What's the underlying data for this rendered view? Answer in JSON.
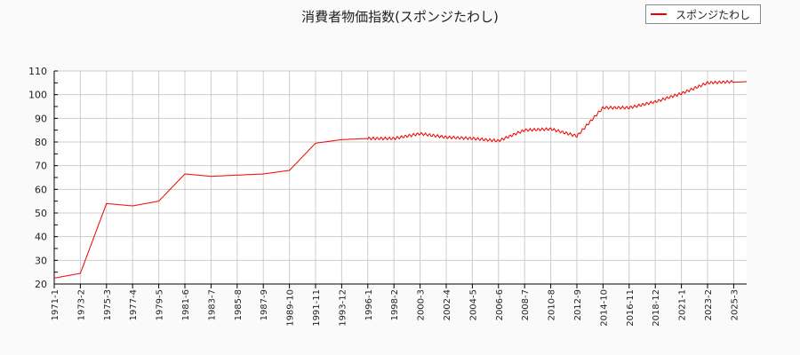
{
  "chart_data": {
    "type": "line",
    "title": "消費者物価指数(スポンジたわし)",
    "xlabel": "",
    "ylabel": "",
    "ylim": [
      20,
      110
    ],
    "yticks": [
      20,
      30,
      40,
      50,
      60,
      70,
      80,
      90,
      100,
      110
    ],
    "grid": true,
    "legend_position": "top-right",
    "categories": [
      "1971-1",
      "1973-2",
      "1975-3",
      "1977-4",
      "1979-5",
      "1981-6",
      "1983-7",
      "1985-8",
      "1987-9",
      "1989-10",
      "1991-11",
      "1993-12",
      "1996-1",
      "1998-2",
      "2000-3",
      "2002-4",
      "2004-5",
      "2006-6",
      "2008-7",
      "2010-8",
      "2012-9",
      "2014-10",
      "2016-11",
      "2018-12",
      "2021-1",
      "2023-2",
      "2025-3"
    ],
    "series": [
      {
        "name": "スポンジたわし",
        "color": "#ee0000",
        "values": [
          22.5,
          24.5,
          54.0,
          53.0,
          55.0,
          66.5,
          65.5,
          66.0,
          66.5,
          68.0,
          79.5,
          81.0,
          81.5,
          81.5,
          83.5,
          82.0,
          81.5,
          80.5,
          85.0,
          85.5,
          82.5,
          94.5,
          94.5,
          97.0,
          100.5,
          105.0,
          105.5
        ]
      }
    ]
  },
  "legend": {
    "label": "スポンジたわし"
  }
}
